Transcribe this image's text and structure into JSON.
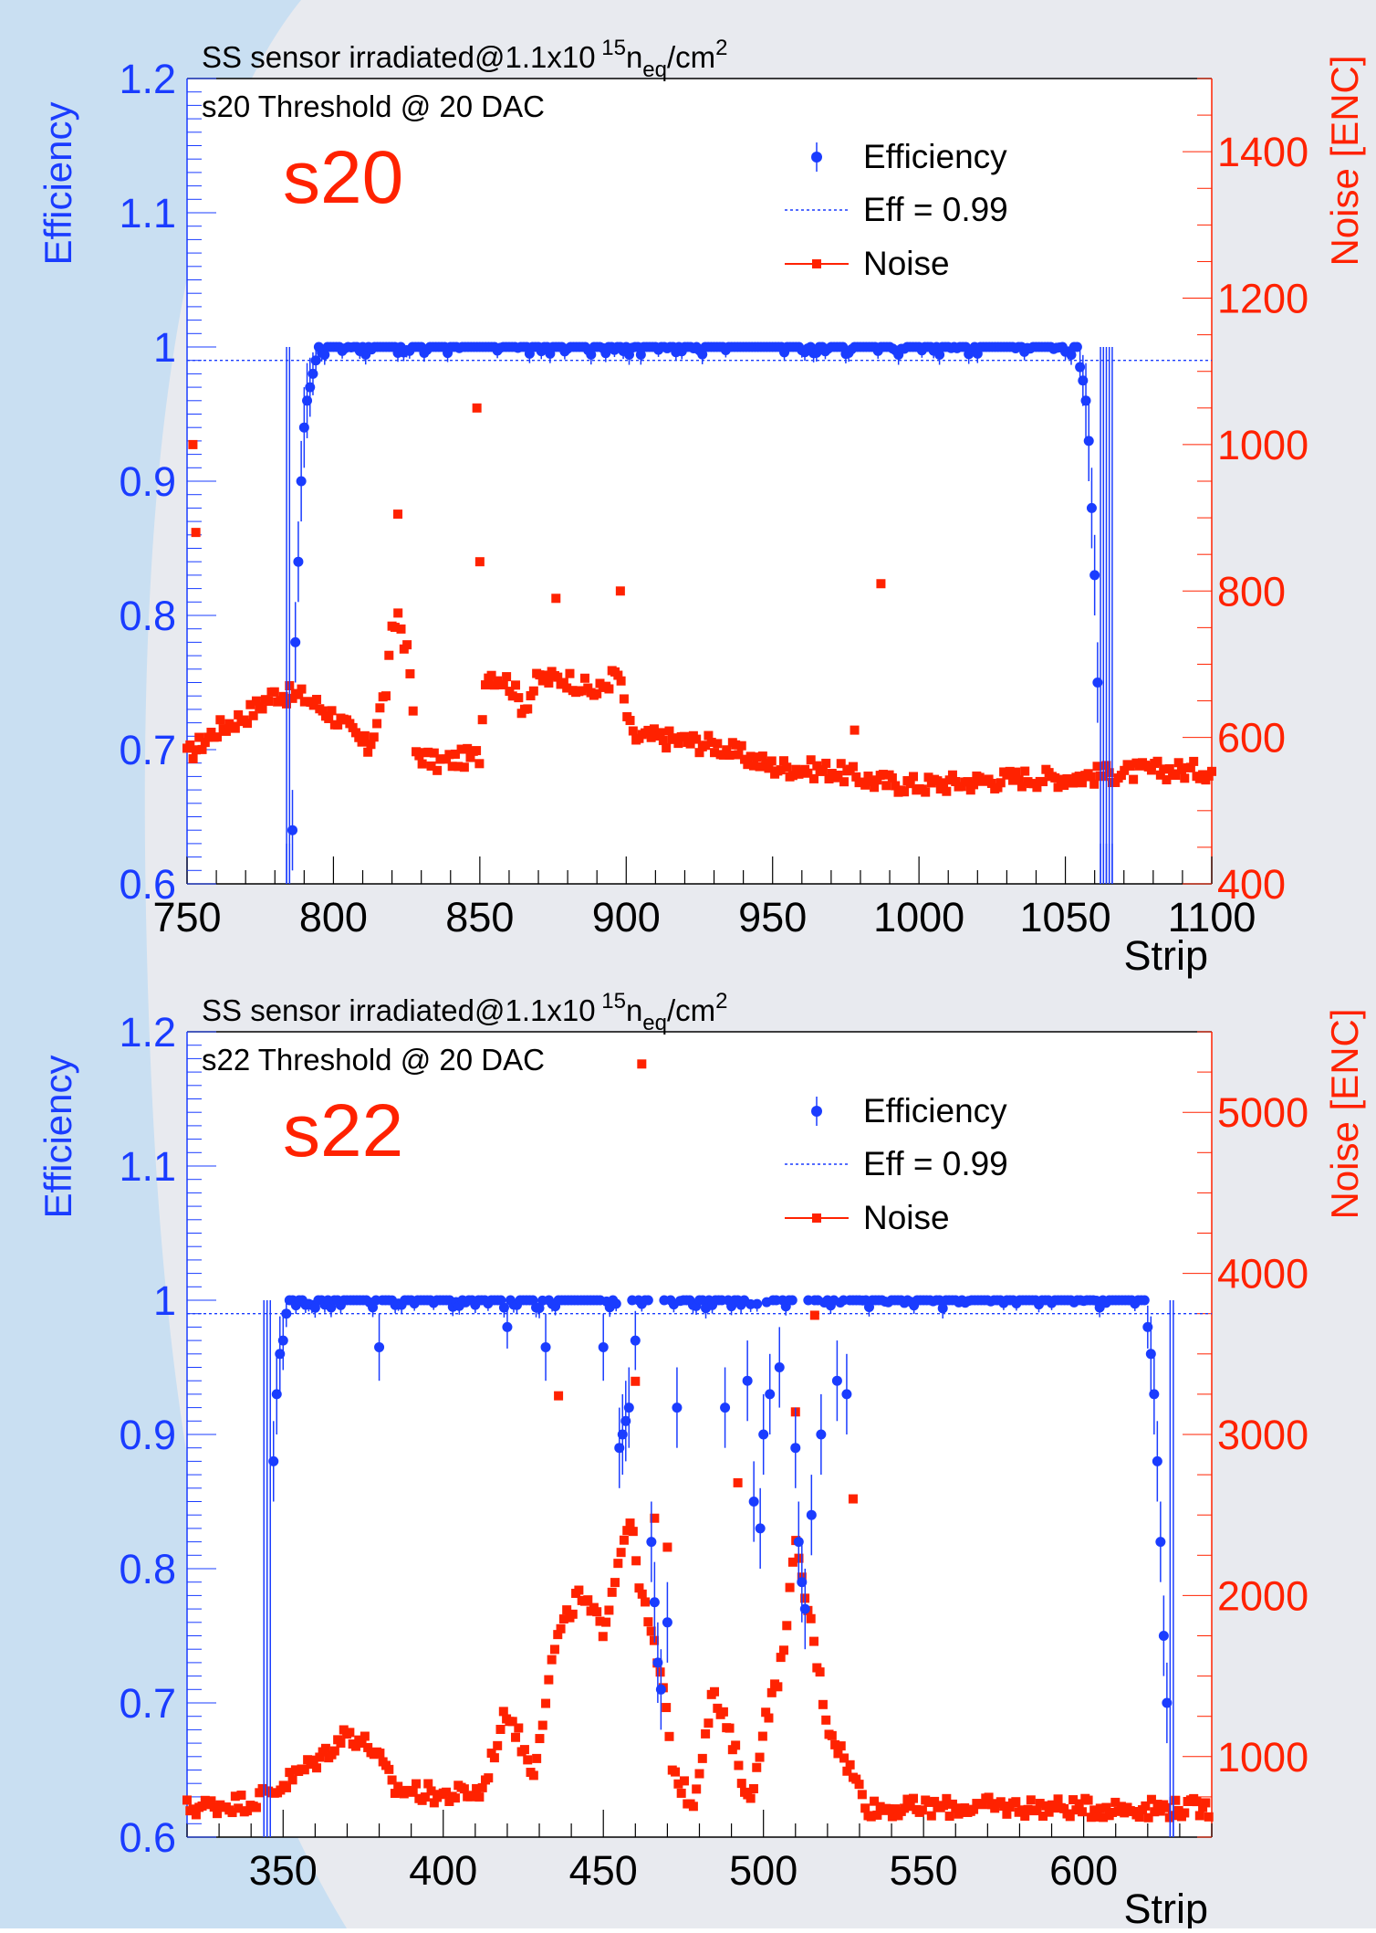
{
  "colors": {
    "efficiency": "#1a3cff",
    "noise": "#ff2200",
    "tag": "#ff2200",
    "background_blob": "#c9dff2",
    "page_bg": "#e8eaef"
  },
  "chart_data": [
    {
      "type": "scatter",
      "title": "SS sensor irradiated@1.1x10",
      "title_sup": "15",
      "title_unit_n": "n",
      "title_unit_sub": "eq",
      "title_unit_tail": "/cm",
      "title_unit_sup": "2",
      "subtitle": "s20   Threshold @ 20 DAC",
      "tag": "s20",
      "xlabel": "Strip",
      "ylabel_left": "Efficiency",
      "ylabel_right": "Noise [ENC]",
      "xlim": [
        750,
        1100
      ],
      "ylim_left": [
        0.6,
        1.2
      ],
      "ylim_right": [
        400,
        1500
      ],
      "xticks": [
        "750",
        "800",
        "850",
        "900",
        "950",
        "1000",
        "1050",
        "1100"
      ],
      "yticks_left": [
        "0.6",
        "0.7",
        "0.8",
        "0.9",
        "1",
        "1.1",
        "1.2"
      ],
      "yticks_right": [
        "400",
        "600",
        "800",
        "1000",
        "1200",
        "1400"
      ],
      "legend": [
        "Efficiency",
        "Eff = 0.99",
        "Noise"
      ],
      "threshold": 0.99,
      "efficiency_range": [
        784,
        1066
      ],
      "efficiency_low_strips": [
        784,
        785,
        786,
        787,
        788,
        789,
        790,
        791,
        792,
        793,
        794,
        1055,
        1056,
        1057,
        1058,
        1059,
        1060,
        1061,
        1062,
        1063,
        1064,
        1065,
        1066
      ],
      "efficiency_low_values": [
        0.6,
        0.6,
        0.64,
        0.78,
        0.84,
        0.9,
        0.94,
        0.96,
        0.97,
        0.98,
        0.99,
        0.985,
        0.975,
        0.96,
        0.93,
        0.88,
        0.83,
        0.75,
        0.6,
        0.6,
        0.6,
        0.6,
        0.6
      ],
      "noise_segments": [
        [
          750,
          575
        ],
        [
          760,
          610
        ],
        [
          770,
          630
        ],
        [
          780,
          660
        ],
        [
          790,
          655
        ],
        [
          800,
          630
        ],
        [
          812,
          585
        ],
        [
          818,
          665
        ],
        [
          820,
          740
        ],
        [
          822,
          770
        ],
        [
          826,
          700
        ],
        [
          828,
          580
        ],
        [
          835,
          565
        ],
        [
          842,
          570
        ],
        [
          850,
          575
        ],
        [
          852,
          690
        ],
        [
          860,
          675
        ],
        [
          865,
          640
        ],
        [
          870,
          680
        ],
        [
          880,
          680
        ],
        [
          890,
          660
        ],
        [
          897,
          690
        ],
        [
          902,
          600
        ],
        [
          910,
          600
        ],
        [
          930,
          590
        ],
        [
          950,
          560
        ],
        [
          970,
          555
        ],
        [
          985,
          540
        ],
        [
          1000,
          535
        ],
        [
          1020,
          540
        ],
        [
          1035,
          545
        ],
        [
          1050,
          545
        ],
        [
          1065,
          550
        ],
        [
          1080,
          555
        ],
        [
          1100,
          555
        ]
      ],
      "noise_outliers": [
        [
          752,
          1000
        ],
        [
          753,
          880
        ],
        [
          849,
          1050
        ],
        [
          850,
          840
        ],
        [
          822,
          905
        ],
        [
          987,
          810
        ],
        [
          978,
          610
        ],
        [
          898,
          800
        ],
        [
          876,
          790
        ]
      ]
    },
    {
      "type": "scatter",
      "title": "SS sensor irradiated@1.1x10",
      "title_sup": "15",
      "title_unit_n": "n",
      "title_unit_sub": "eq",
      "title_unit_tail": "/cm",
      "title_unit_sup": "2",
      "subtitle": "s22   Threshold @ 20 DAC",
      "tag": "s22",
      "xlabel": "Strip",
      "ylabel_left": "Efficiency",
      "ylabel_right": "Noise [ENC]",
      "xlim": [
        320,
        640
      ],
      "ylim_left": [
        0.6,
        1.2
      ],
      "ylim_right": [
        500,
        5500
      ],
      "xticks": [
        "350",
        "400",
        "450",
        "500",
        "550",
        "600"
      ],
      "yticks_left": [
        "0.6",
        "0.7",
        "0.8",
        "0.9",
        "1",
        "1.1",
        "1.2"
      ],
      "yticks_right": [
        "1000",
        "2000",
        "3000",
        "4000",
        "5000"
      ],
      "legend": [
        "Efficiency",
        "Eff = 0.99",
        "Noise"
      ],
      "threshold": 0.99,
      "efficiency_range": [
        344,
        628
      ],
      "efficiency_low_strips": [
        344,
        345,
        346,
        347,
        348,
        349,
        350,
        351,
        380,
        420,
        432,
        450,
        455,
        456,
        457,
        458,
        460,
        465,
        466,
        467,
        468,
        470,
        473,
        488,
        495,
        497,
        499,
        500,
        502,
        505,
        510,
        511,
        512,
        513,
        515,
        518,
        523,
        526,
        620,
        621,
        622,
        623,
        624,
        625,
        626,
        627,
        628
      ],
      "efficiency_low_values": [
        0.6,
        0.6,
        0.6,
        0.88,
        0.93,
        0.96,
        0.97,
        0.99,
        0.965,
        0.98,
        0.965,
        0.965,
        0.89,
        0.9,
        0.91,
        0.92,
        0.97,
        0.82,
        0.775,
        0.73,
        0.71,
        0.76,
        0.92,
        0.92,
        0.94,
        0.85,
        0.83,
        0.9,
        0.93,
        0.95,
        0.89,
        0.82,
        0.79,
        0.77,
        0.84,
        0.9,
        0.94,
        0.93,
        0.98,
        0.96,
        0.93,
        0.88,
        0.82,
        0.75,
        0.7,
        0.6,
        0.6
      ],
      "noise_segments": [
        [
          320,
          680
        ],
        [
          340,
          720
        ],
        [
          348,
          800
        ],
        [
          355,
          900
        ],
        [
          362,
          1000
        ],
        [
          370,
          1150
        ],
        [
          378,
          1050
        ],
        [
          385,
          800
        ],
        [
          400,
          760
        ],
        [
          412,
          780
        ],
        [
          420,
          1300
        ],
        [
          428,
          900
        ],
        [
          435,
          1700
        ],
        [
          442,
          2000
        ],
        [
          450,
          1800
        ],
        [
          458,
          2500
        ],
        [
          462,
          2000
        ],
        [
          468,
          1500
        ],
        [
          472,
          900
        ],
        [
          478,
          700
        ],
        [
          484,
          1400
        ],
        [
          490,
          1100
        ],
        [
          496,
          700
        ],
        [
          500,
          1200
        ],
        [
          505,
          1500
        ],
        [
          510,
          2300
        ],
        [
          515,
          1800
        ],
        [
          520,
          1200
        ],
        [
          525,
          1000
        ],
        [
          530,
          800
        ],
        [
          533,
          680
        ],
        [
          545,
          680
        ],
        [
          570,
          690
        ],
        [
          600,
          680
        ],
        [
          640,
          680
        ]
      ],
      "noise_outliers": [
        [
          462,
          5300
        ],
        [
          470,
          2300
        ],
        [
          436,
          3240
        ],
        [
          460,
          3330
        ],
        [
          516,
          3740
        ],
        [
          510,
          3140
        ],
        [
          492,
          2700
        ],
        [
          528,
          2600
        ],
        [
          466,
          2480
        ]
      ]
    }
  ]
}
